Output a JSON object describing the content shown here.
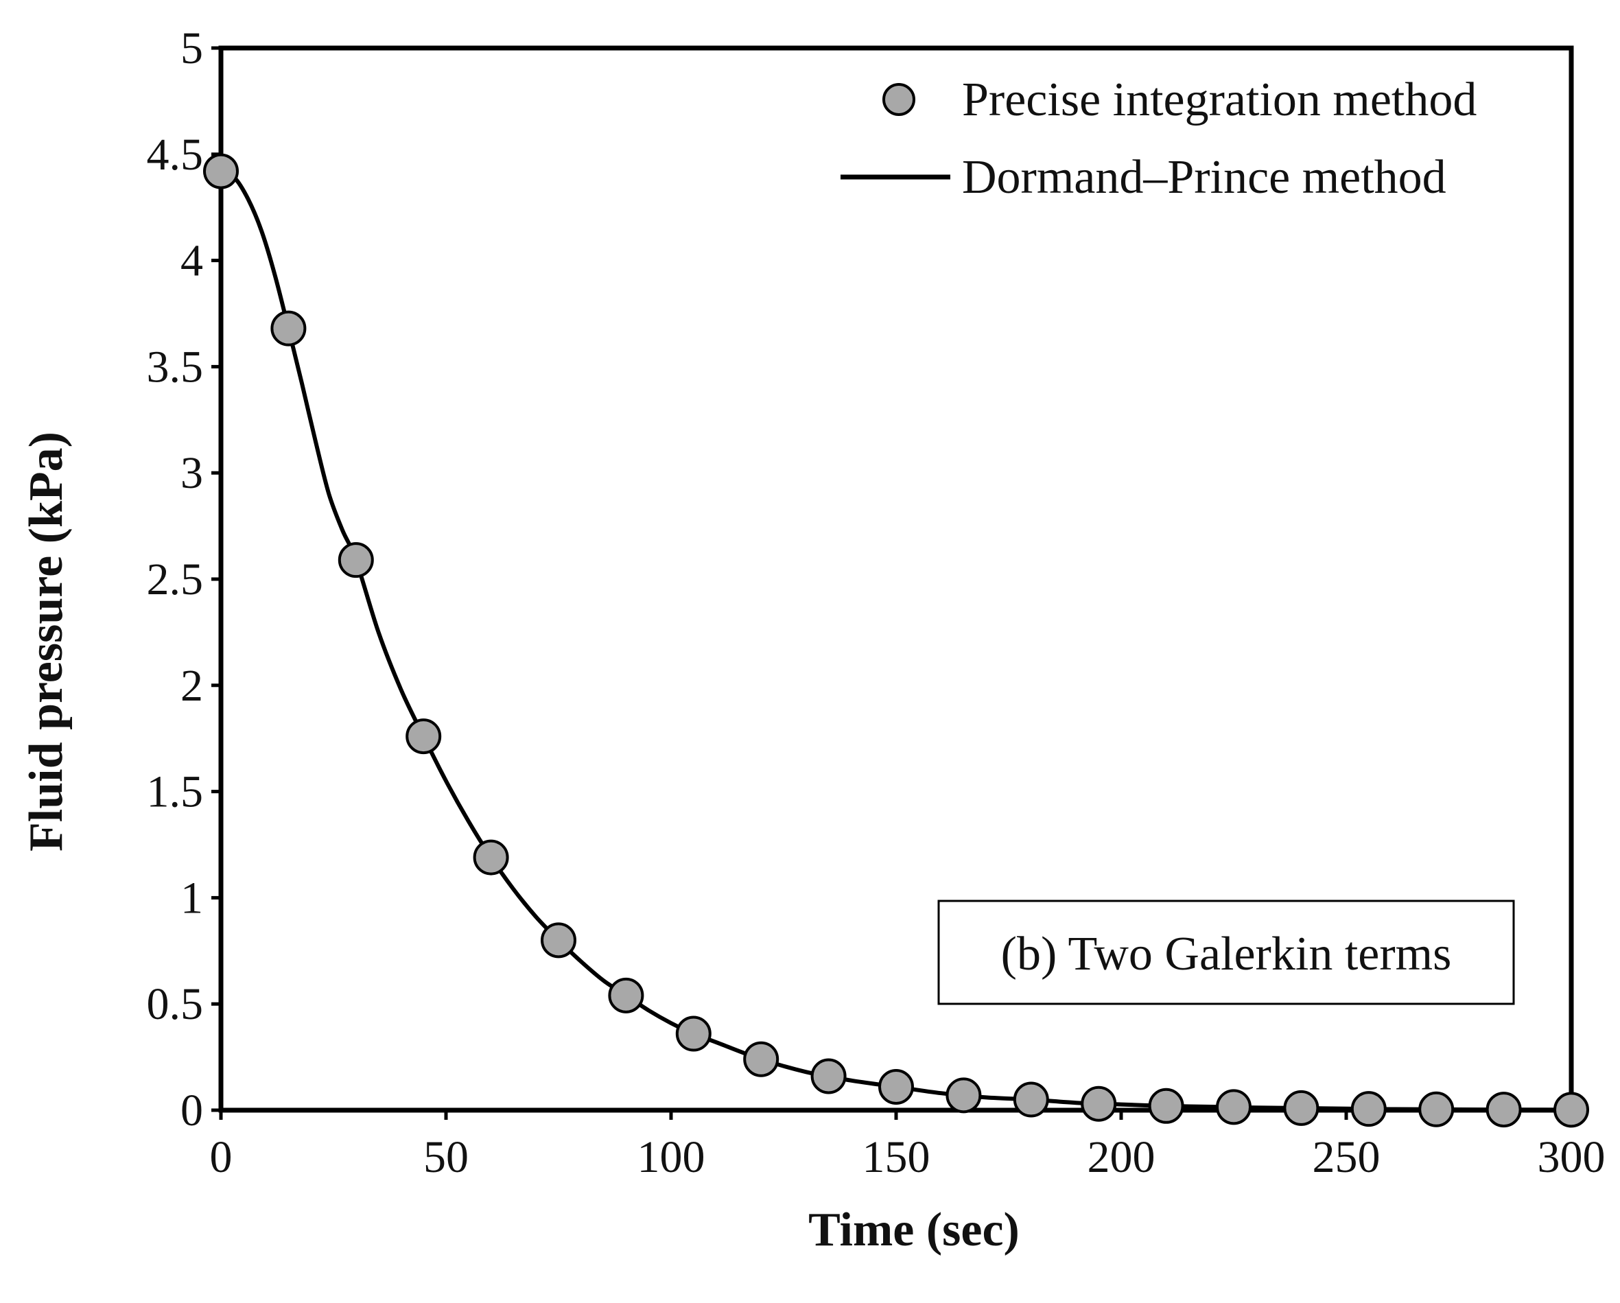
{
  "chart_data": {
    "type": "scatter",
    "title": "",
    "xlabel": "Time (sec)",
    "ylabel": "Fluid pressure (kPa)",
    "xlim": [
      0,
      300
    ],
    "ylim": [
      0,
      5
    ],
    "x_ticks": [
      "0",
      "50",
      "100",
      "150",
      "200",
      "250",
      "300"
    ],
    "x_tick_values": [
      0,
      50,
      100,
      150,
      200,
      250,
      300
    ],
    "y_ticks": [
      "0",
      "0.5",
      "1",
      "1.5",
      "2",
      "2.5",
      "3",
      "3.5",
      "4",
      "4.5",
      "5"
    ],
    "y_tick_values": [
      0,
      0.5,
      1,
      1.5,
      2,
      2.5,
      3,
      3.5,
      4,
      4.5,
      5
    ],
    "grid": false,
    "legend_position": "top-right",
    "annotation": "(b) Two Galerkin terms",
    "series": [
      {
        "name": "Precise integration method",
        "style": "markers",
        "marker_color": "#a8a8a8",
        "x": [
          0,
          15,
          30,
          45,
          60,
          75,
          90,
          105,
          120,
          135,
          150,
          165,
          180,
          195,
          210,
          225,
          240,
          255,
          270,
          285,
          300
        ],
        "y": [
          4.42,
          3.68,
          2.59,
          1.76,
          1.19,
          0.8,
          0.54,
          0.36,
          0.24,
          0.16,
          0.11,
          0.07,
          0.05,
          0.03,
          0.02,
          0.015,
          0.01,
          0.006,
          0.004,
          0.003,
          0.002
        ]
      },
      {
        "name": "Dormand–Prince method",
        "style": "line",
        "line_color": "#000000",
        "x": [
          0,
          3,
          6,
          9,
          12,
          15,
          18,
          21,
          24,
          27,
          30,
          35,
          40,
          45,
          50,
          55,
          60,
          65,
          70,
          75,
          80,
          85,
          90,
          95,
          100,
          105,
          110,
          120,
          130,
          140,
          150,
          160,
          170,
          180,
          190,
          200,
          210,
          220,
          230,
          240,
          250,
          260,
          270,
          280,
          290,
          300
        ],
        "y": [
          4.42,
          4.39,
          4.29,
          4.14,
          3.93,
          3.68,
          3.42,
          3.15,
          2.9,
          2.73,
          2.59,
          2.25,
          1.98,
          1.76,
          1.55,
          1.36,
          1.19,
          1.04,
          0.91,
          0.8,
          0.7,
          0.61,
          0.54,
          0.47,
          0.41,
          0.36,
          0.32,
          0.24,
          0.18,
          0.14,
          0.11,
          0.08,
          0.06,
          0.05,
          0.035,
          0.027,
          0.02,
          0.016,
          0.012,
          0.01,
          0.007,
          0.005,
          0.004,
          0.003,
          0.0025,
          0.002
        ]
      }
    ]
  }
}
